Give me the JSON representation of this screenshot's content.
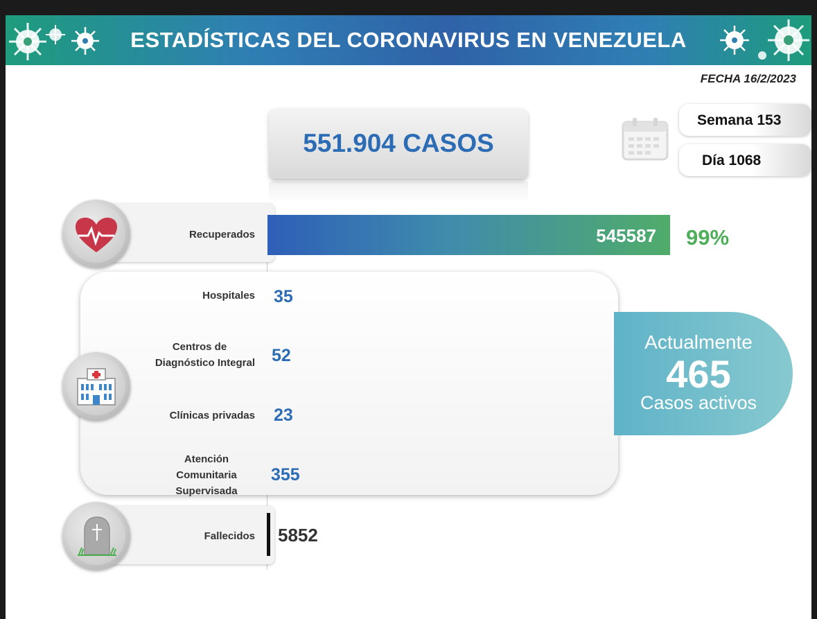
{
  "header": {
    "title": "ESTADÍSTICAS DEL CORONAVIRUS EN VENEZUELA",
    "date": "FECHA 16/2/2023"
  },
  "total": {
    "label": "551.904 CASOS"
  },
  "calendar": {
    "icon": "calendar-icon",
    "week": "Semana 153",
    "day": "Día 1068"
  },
  "chart_data": {
    "type": "bar",
    "categories": [
      "Recuperados",
      "Hospitales",
      "Centros de Diagnóstico Integral",
      "Clínicas privadas",
      "Atención Comunitaria Supervisada",
      "Fallecidos"
    ],
    "values": [
      545587,
      35,
      52,
      23,
      355,
      5852
    ],
    "value_labels": [
      "545587",
      "35",
      "52",
      "23",
      "355",
      "5852"
    ],
    "recovered_percent": "99%",
    "colors": {
      "recovered_start": "#2e5fb8",
      "recovered_end": "#4fac6a",
      "value_blue": "#2c6cb5",
      "percent_green": "#4fae5a",
      "active_teal": "#5fb3c8"
    }
  },
  "labels": {
    "recovered": "Recuperados",
    "hospitals": "Hospitales",
    "cdi_l1": "Centros de",
    "cdi_l2": "Diagnóstico Integral",
    "clinics": "Clínicas privadas",
    "acs_l1": "Atención",
    "acs_l2": "Comunitaria",
    "acs_l3": "Supervisada",
    "deaths": "Fallecidos"
  },
  "active": {
    "line1": "Actualmente",
    "number": "465",
    "line2": "Casos activos"
  },
  "icons": {
    "recovered": "heart-pulse-icon",
    "facilities": "hospital-icon",
    "deaths": "tombstone-icon"
  }
}
